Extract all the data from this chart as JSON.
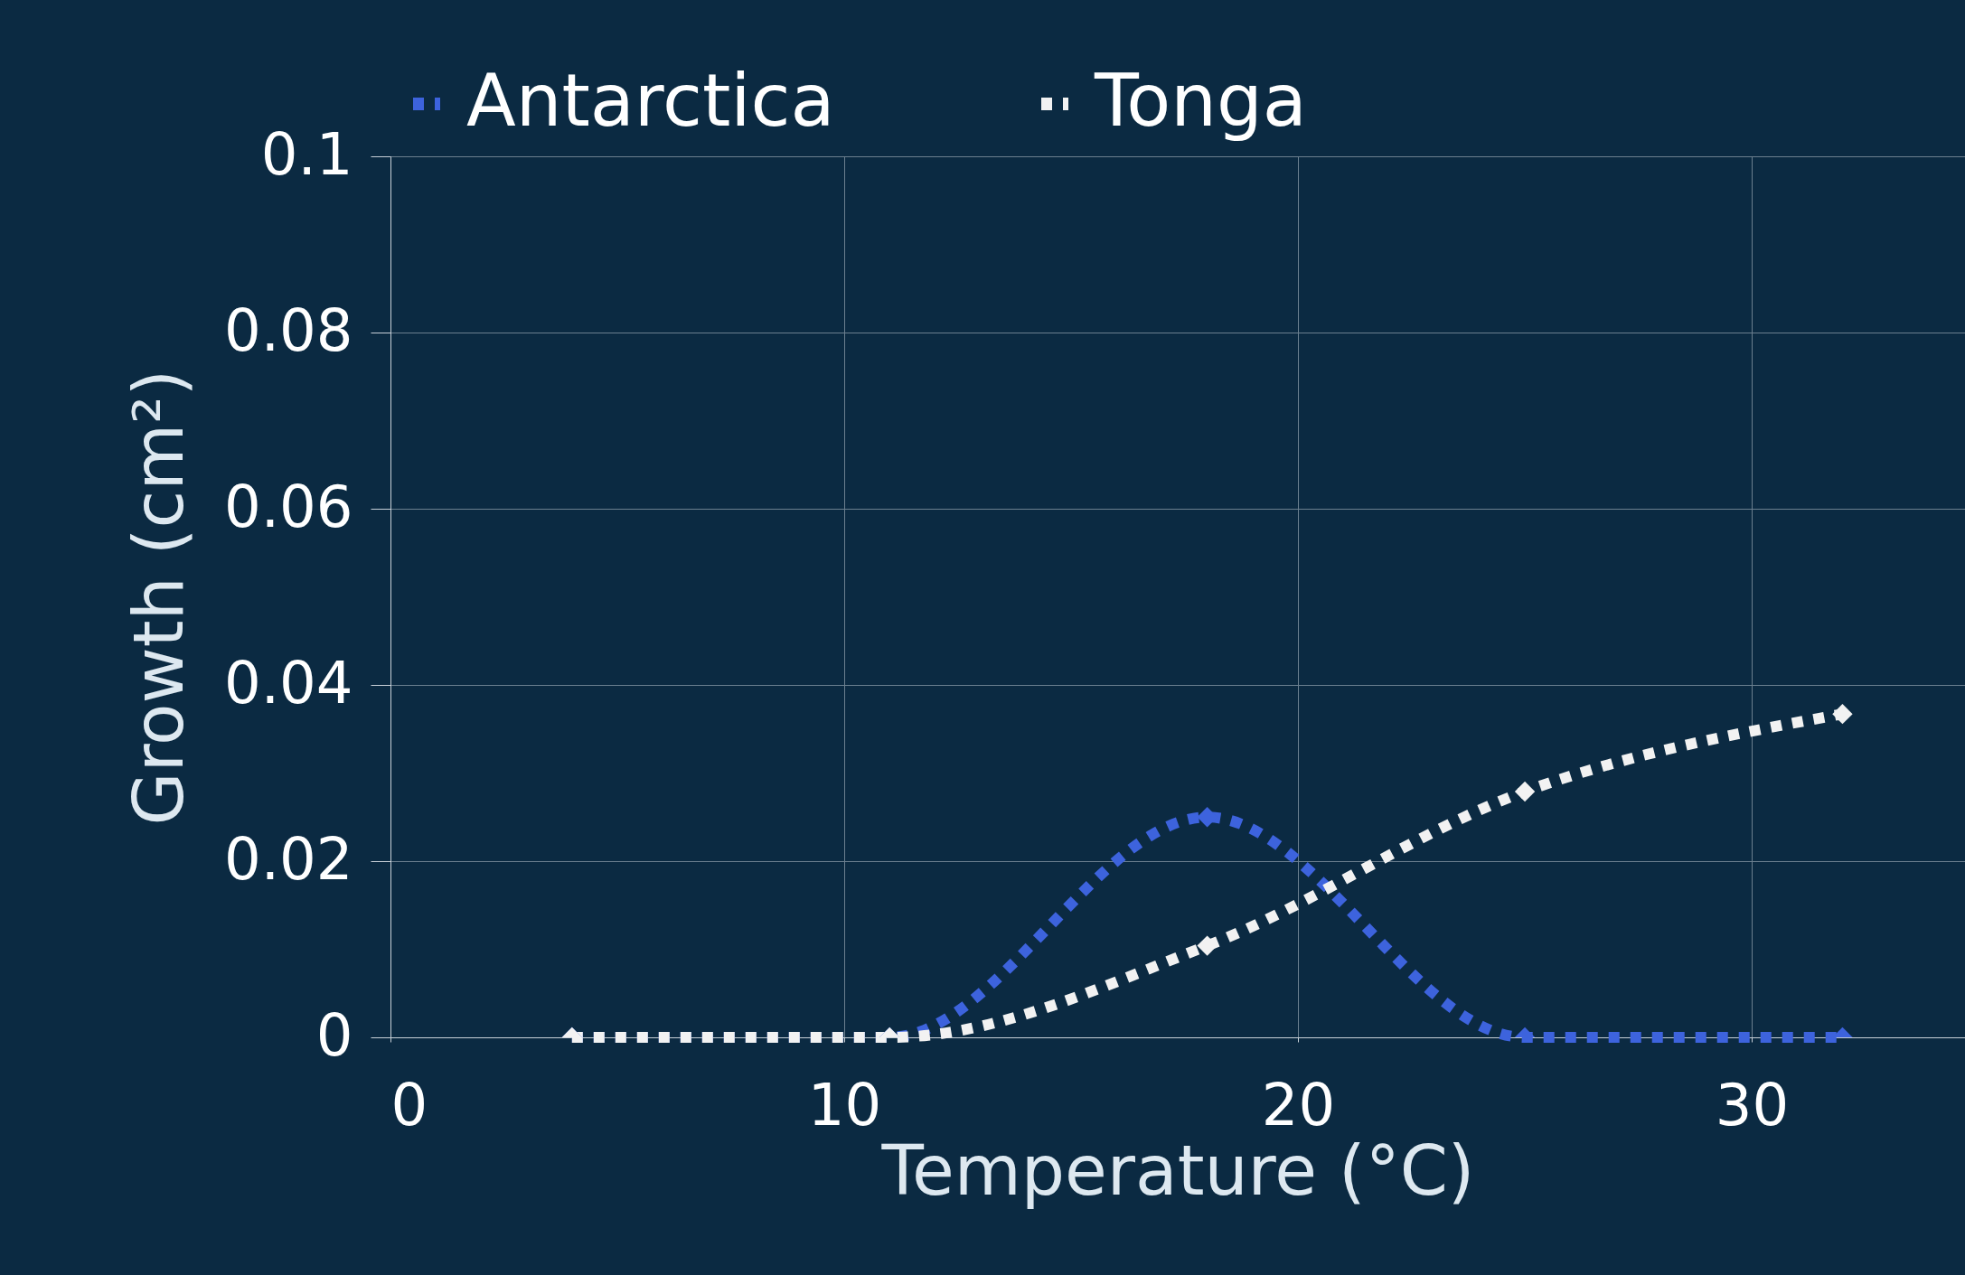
{
  "chart_data": {
    "type": "line",
    "xlabel": "Temperature (°C)",
    "ylabel": "Growth (cm²)",
    "x": [
      4,
      11,
      18,
      25,
      32
    ],
    "series": [
      {
        "name": "Antarctica",
        "color": "#3d63dd",
        "values": [
          0,
          0,
          0.025,
          0,
          0
        ]
      },
      {
        "name": "Tonga",
        "color": "#f2f2f2",
        "values": [
          0,
          0,
          0.0104,
          0.0279,
          0.0367
        ]
      }
    ],
    "xlim": [
      0,
      34.7
    ],
    "xticks": [
      0,
      10,
      20,
      30
    ],
    "ylim": [
      0,
      0.1
    ],
    "yticks": [
      0,
      0.02,
      0.04,
      0.06,
      0.08,
      0.1
    ],
    "grid": true,
    "legend": "top",
    "marker": "diamond",
    "line_style": "dotted"
  }
}
